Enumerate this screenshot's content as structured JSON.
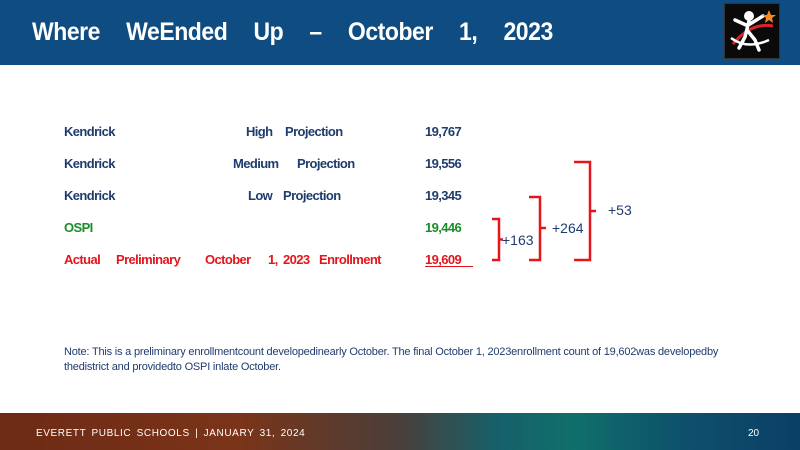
{
  "slide": {
    "title": "Where WeEnded Up – October 1, 2023"
  },
  "rows": [
    {
      "col1": "Kendrick",
      "col2": "High",
      "col3": "Projection",
      "value": "19,767",
      "color": "#1f3c6e"
    },
    {
      "col1": "Kendrick",
      "col2": "Medium",
      "col3": "Projection",
      "value": "19,556",
      "color": "#1f3c6e"
    },
    {
      "col1": "Kendrick",
      "col2": "Low",
      "col3": "Projection",
      "value": "19,345",
      "color": "#1f3c6e"
    },
    {
      "col1": "OSPI",
      "value": "19,446",
      "color": "#1a8c2a"
    },
    {
      "col1": "Actual",
      "col2": "Preliminary",
      "col3": "October",
      "col4": "1,",
      "col5": "2023",
      "col6": "Enrollment",
      "value": "19,609",
      "color": "#e4161b"
    }
  ],
  "differences": {
    "vs_medium": "+53",
    "vs_low": "+264",
    "vs_ospi": "+163"
  },
  "note": "Note: This is a preliminary enrollmentcount developedinearly October. The final October 1, 2023enrollment count of 19,602was developedby thedistrict and providedto OSPI inlate October.",
  "footer": {
    "org": "EVERETT PUBLIC SCHOOLS | JANUARY 31, 2024",
    "page": "20"
  },
  "colors": {
    "header": "#0f4c81",
    "bracket": "#e4161b",
    "text_blue": "#1f3c6e"
  },
  "icons": {
    "logo": "everett-schools-logo-icon"
  }
}
